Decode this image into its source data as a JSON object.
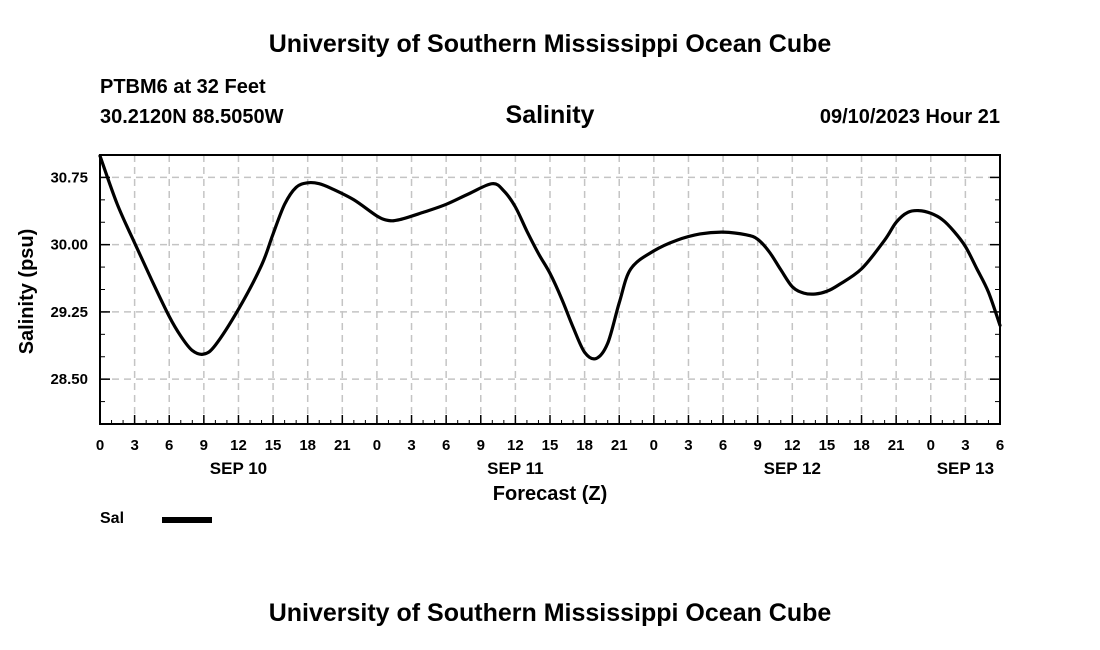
{
  "header": {
    "title": "University of Southern Mississippi Ocean Cube",
    "station": "PTBM6 at 32 Feet",
    "coords": "30.2120N  88.5050W",
    "datetime": "09/10/2023 Hour 21"
  },
  "footer": {
    "title": "University of Southern Mississippi Ocean Cube"
  },
  "legend": {
    "label": "Sal",
    "color": "#000000"
  },
  "chart_data": {
    "type": "line",
    "title": "Salinity",
    "xlabel": "Forecast (Z)",
    "ylabel": "Salinity (psu)",
    "xlim": [
      0,
      78
    ],
    "ylim": [
      28.0,
      31.0
    ],
    "grid": true,
    "x_ticks": [
      0,
      3,
      6,
      9,
      12,
      15,
      18,
      21,
      24,
      27,
      30,
      33,
      36,
      39,
      42,
      45,
      48,
      51,
      54,
      57,
      60,
      63,
      66,
      69,
      72,
      75,
      78
    ],
    "x_tick_labels": [
      "0",
      "3",
      "6",
      "9",
      "12",
      "15",
      "18",
      "21",
      "0",
      "3",
      "6",
      "9",
      "12",
      "15",
      "18",
      "21",
      "0",
      "3",
      "6",
      "9",
      "12",
      "15",
      "18",
      "21",
      "0",
      "3",
      "6"
    ],
    "y_ticks": [
      28.5,
      29.25,
      30.0,
      30.75
    ],
    "y_tick_labels": [
      "28.50",
      "29.25",
      "30.00",
      "30.75"
    ],
    "date_labels": [
      {
        "x": 12,
        "label": "SEP 10"
      },
      {
        "x": 36,
        "label": "SEP 11"
      },
      {
        "x": 60,
        "label": "SEP 12"
      },
      {
        "x": 75,
        "label": "SEP 13"
      }
    ],
    "series": [
      {
        "name": "Sal",
        "x": [
          0,
          1.5,
          3,
          4.5,
          6,
          7,
          8,
          9,
          10,
          12,
          14,
          15,
          16,
          17,
          18,
          19,
          20,
          22,
          24,
          25,
          26,
          28,
          30,
          32,
          34,
          35,
          36,
          37,
          38,
          39,
          40,
          41,
          42,
          43,
          44,
          45,
          46,
          48,
          50,
          52,
          54,
          56,
          57,
          58,
          59,
          60,
          61,
          62,
          63,
          64,
          66,
          68,
          69,
          70,
          71,
          72,
          73,
          74,
          75,
          76,
          77,
          78
        ],
        "values": [
          30.99,
          30.45,
          30.02,
          29.6,
          29.2,
          28.98,
          28.82,
          28.78,
          28.88,
          29.28,
          29.77,
          30.12,
          30.45,
          30.64,
          30.69,
          30.68,
          30.63,
          30.5,
          30.32,
          30.27,
          30.28,
          30.36,
          30.45,
          30.57,
          30.68,
          30.6,
          30.42,
          30.15,
          29.9,
          29.68,
          29.4,
          29.08,
          28.8,
          28.73,
          28.9,
          29.35,
          29.73,
          29.93,
          30.05,
          30.12,
          30.14,
          30.11,
          30.06,
          29.92,
          29.72,
          29.53,
          29.46,
          29.45,
          29.48,
          29.55,
          29.73,
          30.05,
          30.25,
          30.36,
          30.38,
          30.35,
          30.28,
          30.15,
          29.98,
          29.73,
          29.47,
          29.1
        ]
      }
    ]
  }
}
